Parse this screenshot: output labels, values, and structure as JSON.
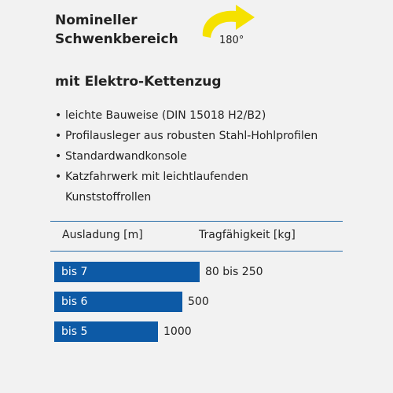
{
  "header": {
    "title_line1": "Nomineller",
    "title_line2": "Schwenkbereich",
    "rotation_label": "180°",
    "rotation_icon": "curved-arrow-icon",
    "icon_color": "#f5e100"
  },
  "section": {
    "title": "mit Elektro-Kettenzug",
    "features": [
      "leichte Bauweise (DIN 15018 H2/B2)",
      "Profilausleger aus robusten Stahl-Hohlprofilen",
      "Standardwandkonsole",
      "Katzfahrwerk mit leichtlaufenden",
      "Kunststoffrollen"
    ]
  },
  "table": {
    "headers": [
      "Ausladung [m]",
      "Tragfähigkeit [kg]"
    ],
    "accent_color": "#0d5aa6",
    "rows": [
      {
        "reach": "bis 7",
        "capacity": "80 bis 250",
        "max_capacity_kg": 250
      },
      {
        "reach": "bis 6",
        "capacity": "500",
        "max_capacity_kg": 500
      },
      {
        "reach": "bis 5",
        "capacity": "1000",
        "max_capacity_kg": 1000
      }
    ]
  }
}
